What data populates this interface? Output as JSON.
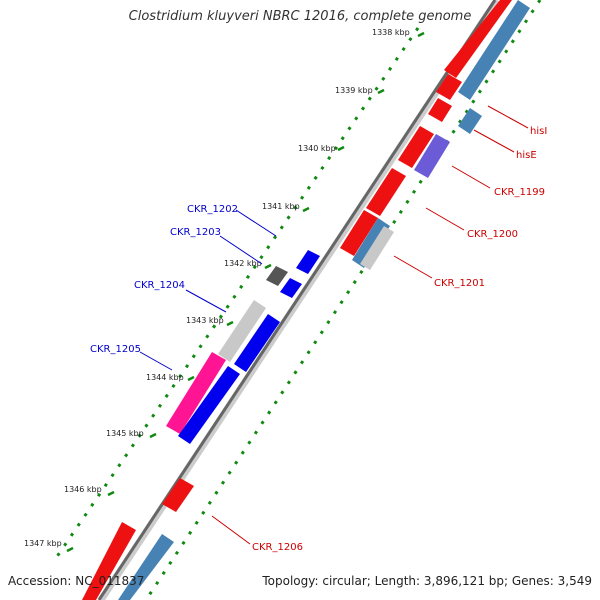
{
  "title": "Clostridium kluyveri NBRC 12016, complete genome",
  "accession": "Accession: NC_011837",
  "topology": "Topology: circular; Length: 3,896,121 bp; Genes: 3,549",
  "ticks": [
    "1338 kbp",
    "1339 kbp",
    "1340 kbp",
    "1341 kbp",
    "1342 kbp",
    "1343 kbp",
    "1344 kbp",
    "1345 kbp",
    "1346 kbp",
    "1347 kbp"
  ],
  "labels": {
    "hisI": "hisI",
    "hisE": "hisE",
    "ckr1199": "CKR_1199",
    "ckr1200": "CKR_1200",
    "ckr1201": "CKR_1201",
    "ckr1202": "CKR_1202",
    "ckr1203": "CKR_1203",
    "ckr1204": "CKR_1204",
    "ckr1205": "CKR_1205",
    "ckr1206": "CKR_1206"
  },
  "colors": {
    "forward_label": "#cc0000",
    "reverse_label": "#0000cc",
    "cds_red": "#ee1111",
    "cds_blue": "#0000ee",
    "cds_steel": "#4682b4",
    "cds_gray": "#c8c8c8",
    "cds_dark": "#555555",
    "cds_pink": "#ff1493",
    "cds_purple": "#6b5bd6",
    "tick_green": "#118811",
    "backbone": "#666666"
  }
}
